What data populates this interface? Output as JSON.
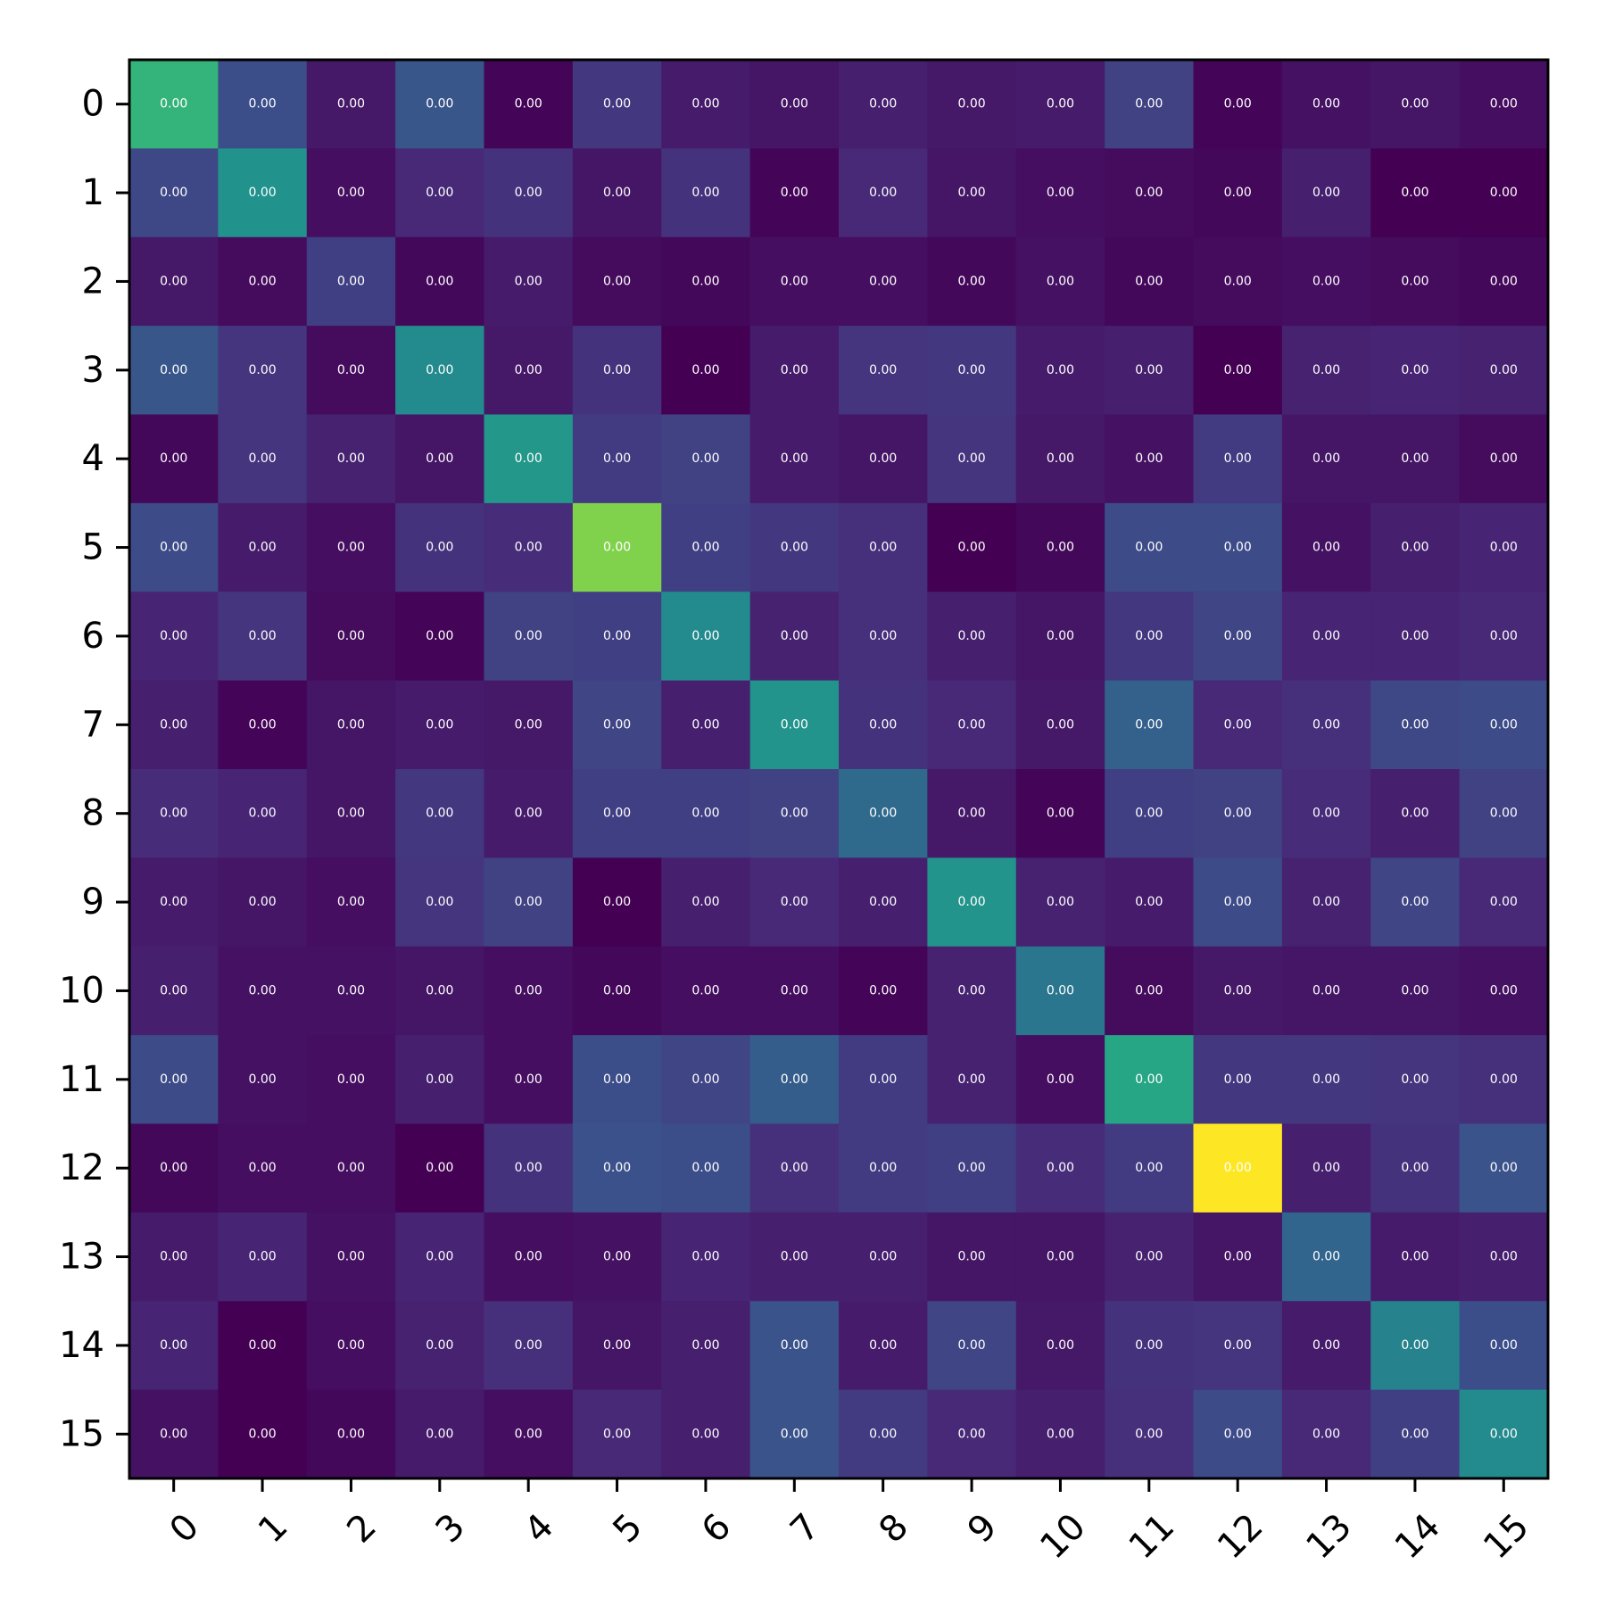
{
  "chart_data": {
    "type": "heatmap",
    "title": "",
    "xlabel": "",
    "ylabel": "",
    "x_categories": [
      "0",
      "1",
      "2",
      "3",
      "4",
      "5",
      "6",
      "7",
      "8",
      "9",
      "10",
      "11",
      "12",
      "13",
      "14",
      "15"
    ],
    "y_categories": [
      "0",
      "1",
      "2",
      "3",
      "4",
      "5",
      "6",
      "7",
      "8",
      "9",
      "10",
      "11",
      "12",
      "13",
      "14",
      "15"
    ],
    "cell_text": "0.00",
    "colormap": "viridis",
    "color_range": [
      0,
      1
    ],
    "grid": false,
    "intensity": [
      [
        0.66,
        0.24,
        0.07,
        0.27,
        0.01,
        0.17,
        0.08,
        0.06,
        0.09,
        0.07,
        0.08,
        0.2,
        0.01,
        0.05,
        0.06,
        0.04
      ],
      [
        0.22,
        0.51,
        0.04,
        0.12,
        0.15,
        0.06,
        0.15,
        0.01,
        0.12,
        0.06,
        0.04,
        0.03,
        0.02,
        0.09,
        0.0,
        0.0
      ],
      [
        0.07,
        0.03,
        0.19,
        0.02,
        0.08,
        0.03,
        0.02,
        0.04,
        0.04,
        0.02,
        0.05,
        0.02,
        0.03,
        0.04,
        0.03,
        0.02
      ],
      [
        0.27,
        0.16,
        0.03,
        0.48,
        0.07,
        0.15,
        0.0,
        0.08,
        0.16,
        0.17,
        0.08,
        0.09,
        0.0,
        0.1,
        0.11,
        0.1
      ],
      [
        0.02,
        0.16,
        0.1,
        0.06,
        0.53,
        0.18,
        0.2,
        0.08,
        0.06,
        0.16,
        0.07,
        0.05,
        0.18,
        0.06,
        0.06,
        0.03
      ],
      [
        0.23,
        0.08,
        0.04,
        0.15,
        0.13,
        0.81,
        0.19,
        0.17,
        0.14,
        0.0,
        0.02,
        0.23,
        0.23,
        0.05,
        0.09,
        0.11
      ],
      [
        0.11,
        0.16,
        0.03,
        0.01,
        0.2,
        0.19,
        0.48,
        0.1,
        0.14,
        0.09,
        0.06,
        0.17,
        0.21,
        0.11,
        0.11,
        0.12
      ],
      [
        0.09,
        0.01,
        0.06,
        0.08,
        0.07,
        0.21,
        0.09,
        0.52,
        0.15,
        0.12,
        0.07,
        0.31,
        0.12,
        0.14,
        0.22,
        0.23
      ],
      [
        0.13,
        0.11,
        0.06,
        0.17,
        0.08,
        0.19,
        0.19,
        0.2,
        0.35,
        0.07,
        0.01,
        0.19,
        0.2,
        0.13,
        0.09,
        0.2
      ],
      [
        0.08,
        0.06,
        0.04,
        0.16,
        0.2,
        0.0,
        0.09,
        0.12,
        0.09,
        0.52,
        0.1,
        0.08,
        0.23,
        0.1,
        0.21,
        0.12
      ],
      [
        0.09,
        0.05,
        0.05,
        0.06,
        0.04,
        0.02,
        0.04,
        0.04,
        0.01,
        0.1,
        0.4,
        0.03,
        0.07,
        0.06,
        0.06,
        0.05
      ],
      [
        0.23,
        0.05,
        0.04,
        0.09,
        0.04,
        0.24,
        0.21,
        0.3,
        0.18,
        0.1,
        0.04,
        0.6,
        0.17,
        0.17,
        0.16,
        0.14
      ],
      [
        0.02,
        0.04,
        0.04,
        0.0,
        0.15,
        0.25,
        0.24,
        0.14,
        0.18,
        0.19,
        0.13,
        0.18,
        1.0,
        0.09,
        0.15,
        0.26
      ],
      [
        0.08,
        0.11,
        0.05,
        0.11,
        0.04,
        0.05,
        0.11,
        0.09,
        0.09,
        0.06,
        0.06,
        0.1,
        0.06,
        0.33,
        0.08,
        0.09
      ],
      [
        0.11,
        0.0,
        0.04,
        0.1,
        0.14,
        0.06,
        0.09,
        0.26,
        0.08,
        0.21,
        0.07,
        0.15,
        0.16,
        0.08,
        0.45,
        0.24
      ],
      [
        0.05,
        0.0,
        0.02,
        0.08,
        0.04,
        0.12,
        0.09,
        0.26,
        0.18,
        0.12,
        0.09,
        0.14,
        0.23,
        0.12,
        0.19,
        0.48
      ]
    ]
  }
}
